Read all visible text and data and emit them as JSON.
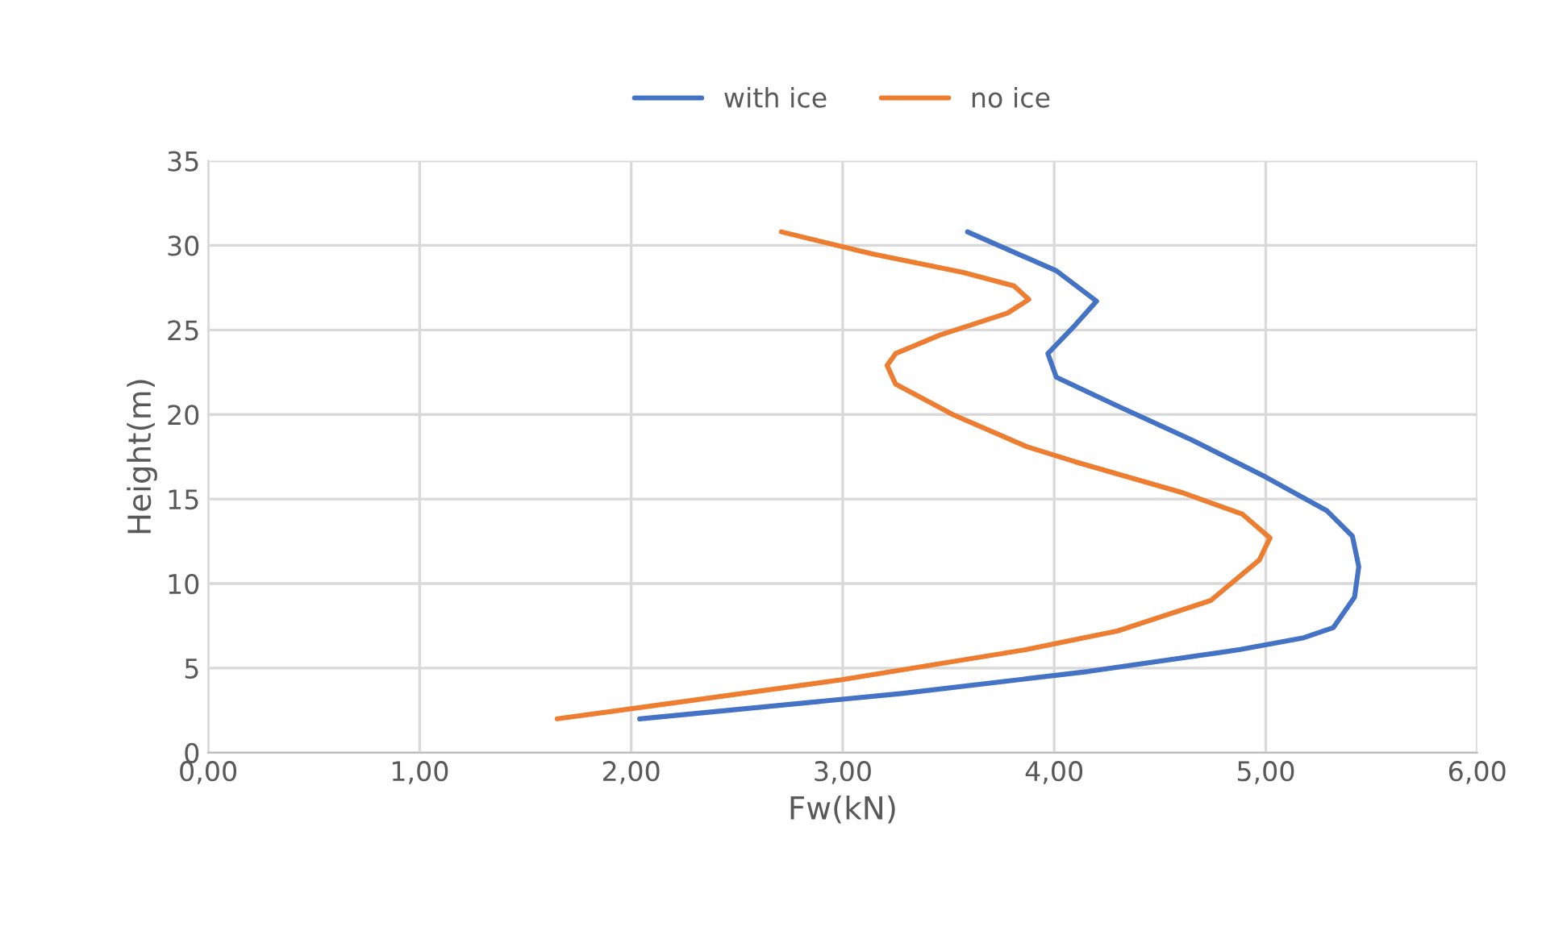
{
  "chart_data": {
    "type": "line",
    "xlabel": "Fw(kN)",
    "ylabel": "Height(m)",
    "xlim": [
      0,
      6
    ],
    "ylim": [
      0,
      35
    ],
    "xticks": [
      {
        "value": 0,
        "label": "0,00"
      },
      {
        "value": 1,
        "label": "1,00"
      },
      {
        "value": 2,
        "label": "2,00"
      },
      {
        "value": 3,
        "label": "3,00"
      },
      {
        "value": 4,
        "label": "4,00"
      },
      {
        "value": 5,
        "label": "5,00"
      },
      {
        "value": 6,
        "label": "6,00"
      }
    ],
    "yticks": [
      0,
      5,
      10,
      15,
      20,
      25,
      30,
      35
    ],
    "grid": true,
    "legend": "top",
    "marker": "none",
    "line_style": "solid",
    "series": [
      {
        "name": "with ice",
        "color": "#4472c4",
        "x": [
          3.59,
          4.01,
          4.2,
          4.1,
          3.97,
          4.01,
          4.3,
          4.65,
          5.0,
          5.29,
          5.41,
          5.44,
          5.42,
          5.32,
          5.18,
          4.88,
          4.16,
          3.28,
          2.04
        ],
        "values": [
          30.8,
          28.5,
          26.7,
          25.3,
          23.6,
          22.2,
          20.5,
          18.5,
          16.3,
          14.3,
          12.8,
          11.0,
          9.2,
          7.4,
          6.8,
          6.1,
          4.8,
          3.5,
          2.0
        ]
      },
      {
        "name": "no ice",
        "color": "#ed7d31",
        "x": [
          2.71,
          3.14,
          3.57,
          3.81,
          3.88,
          3.78,
          3.46,
          3.25,
          3.21,
          3.25,
          3.52,
          3.87,
          4.1,
          4.6,
          4.89,
          5.02,
          4.97,
          4.74,
          4.3,
          3.87,
          2.99,
          1.65
        ],
        "values": [
          30.8,
          29.5,
          28.4,
          27.6,
          26.8,
          26.0,
          24.7,
          23.6,
          22.9,
          21.8,
          20.0,
          18.1,
          17.2,
          15.4,
          14.1,
          12.7,
          11.4,
          9.0,
          7.2,
          6.1,
          4.3,
          2.0
        ]
      }
    ]
  }
}
